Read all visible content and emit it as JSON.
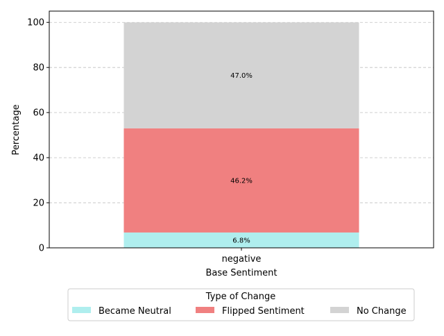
{
  "chart_data": {
    "type": "bar",
    "stacked": true,
    "categories": [
      "negative"
    ],
    "series": [
      {
        "name": "Became Neutral",
        "values": [
          6.8
        ],
        "color": "#afeeee",
        "label": "6.8%"
      },
      {
        "name": "Flipped Sentiment",
        "values": [
          46.2
        ],
        "color": "#f08080",
        "label": "46.2%"
      },
      {
        "name": "No Change",
        "values": [
          47.0
        ],
        "color": "#d3d3d3",
        "label": "47.0%"
      }
    ],
    "xlabel": "Base Sentiment",
    "ylabel": "Percentage",
    "ylim": [
      0,
      105
    ],
    "yticks": [
      0,
      20,
      40,
      60,
      80,
      100
    ],
    "grid": "y-dashed",
    "legend": {
      "title": "Type of Change",
      "placement": "bottom-center"
    }
  }
}
